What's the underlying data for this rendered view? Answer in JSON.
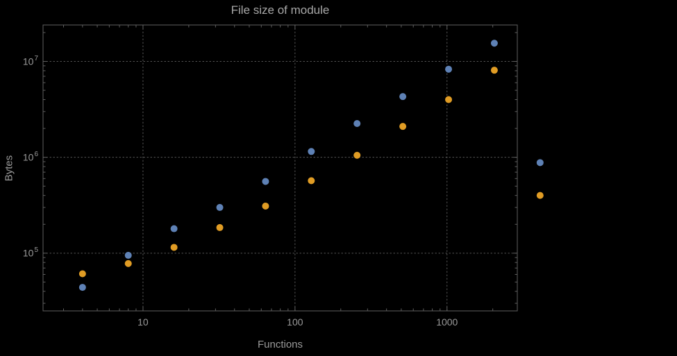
{
  "chart_data": {
    "type": "scatter",
    "title": "File size of module",
    "xlabel": "Functions",
    "ylabel": "Bytes",
    "xscale": "log",
    "yscale": "log",
    "xlim": [
      2.2,
      2900
    ],
    "ylim": [
      25000,
      24000000
    ],
    "grid": "dotted",
    "legend": "none",
    "x_ticks": [
      {
        "value": 10,
        "label": "10"
      },
      {
        "value": 100,
        "label": "100"
      },
      {
        "value": 1000,
        "label": "1000"
      }
    ],
    "y_ticks": [
      {
        "value": 100000,
        "label": "10^5",
        "base": "10",
        "exp": "5"
      },
      {
        "value": 1000000,
        "label": "10^6",
        "base": "10",
        "exp": "6"
      },
      {
        "value": 10000000,
        "label": "10^7",
        "base": "10",
        "exp": "7"
      }
    ],
    "series": [
      {
        "name": "blue",
        "color": "#5e81b5",
        "points": [
          [
            4,
            44000
          ],
          [
            8,
            95000
          ],
          [
            16,
            180000
          ],
          [
            32,
            300000
          ],
          [
            64,
            560000
          ],
          [
            128,
            1150000
          ],
          [
            256,
            2250000
          ],
          [
            512,
            4300000
          ],
          [
            1024,
            8300000
          ],
          [
            2048,
            15500000
          ],
          [
            4096,
            880000
          ]
        ]
      },
      {
        "name": "orange",
        "color": "#e09c24",
        "points": [
          [
            4,
            61000
          ],
          [
            8,
            78000
          ],
          [
            16,
            115000
          ],
          [
            32,
            185000
          ],
          [
            64,
            310000
          ],
          [
            128,
            570000
          ],
          [
            256,
            1050000
          ],
          [
            512,
            2100000
          ],
          [
            1024,
            4000000
          ],
          [
            2048,
            8100000
          ],
          [
            4096,
            400000
          ]
        ]
      }
    ]
  },
  "style": {
    "background": "#000000",
    "frame_color": "#606060",
    "grid_color": "#5a5a5a",
    "tick_color": "#606060",
    "text_color": "#9a9a9a",
    "title_color": "#a8a8a8",
    "marker_radius": 5
  }
}
